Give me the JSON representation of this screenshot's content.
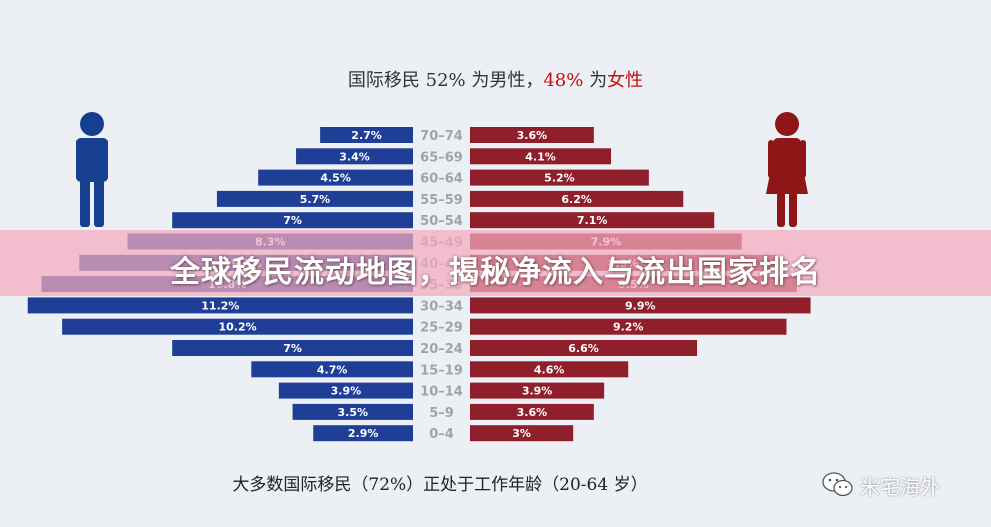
{
  "headline": {
    "part1": "国际移民 52% 为男性，",
    "part2": "48%",
    "part3": " 为",
    "part4": "女性"
  },
  "banner_text": "全球移民流动地图，揭秘净流入与流出国家排名",
  "footer_text": "大多数国际移民（72%）正处于工作年龄（20-64 岁）",
  "watermark": {
    "text": "米宅海外",
    "icon": "wechat-icon"
  },
  "colors": {
    "male": "#1f3f96",
    "female": "#8f1f2a",
    "male_figure": "#173f8f",
    "female_figure": "#8f1616",
    "age_label": "#a3a3a3",
    "accent_red": "#c01010"
  },
  "chart_data": {
    "type": "bar",
    "categories": [
      "70–74",
      "65–69",
      "60–64",
      "55–59",
      "50–54",
      "45–49",
      "40–44",
      "35–39",
      "30–34",
      "25–29",
      "20–24",
      "15–19",
      "10–14",
      "5–9",
      "0–4"
    ],
    "series": [
      {
        "name": "男性",
        "values": [
          2.7,
          3.4,
          4.5,
          5.7,
          7,
          8.3,
          9.7,
          10.8,
          11.2,
          10.2,
          7,
          4.7,
          3.9,
          3.5,
          2.9
        ],
        "labels": [
          "2.7%",
          "3.4%",
          "4.5%",
          "5.7%",
          "7%",
          "8.3%",
          "9.7%",
          "10.8%",
          "11.2%",
          "10.2%",
          "7%",
          "4.7%",
          "3.9%",
          "3.5%",
          "2.9%"
        ]
      },
      {
        "name": "女性",
        "values": [
          3.6,
          4.1,
          5.2,
          6.2,
          7.1,
          7.9,
          8.9,
          9.5,
          9.9,
          9.2,
          6.6,
          4.6,
          3.9,
          3.6,
          3
        ],
        "labels": [
          "3.6%",
          "4.1%",
          "5.2%",
          "6.2%",
          "7.1%",
          "7.9%",
          "8.9%",
          "9.5%",
          "9.9%",
          "9.2%",
          "6.6%",
          "4.6%",
          "3.9%",
          "3.6%",
          "3%"
        ]
      }
    ],
    "title": "",
    "xlabel": "",
    "ylabel": ""
  }
}
